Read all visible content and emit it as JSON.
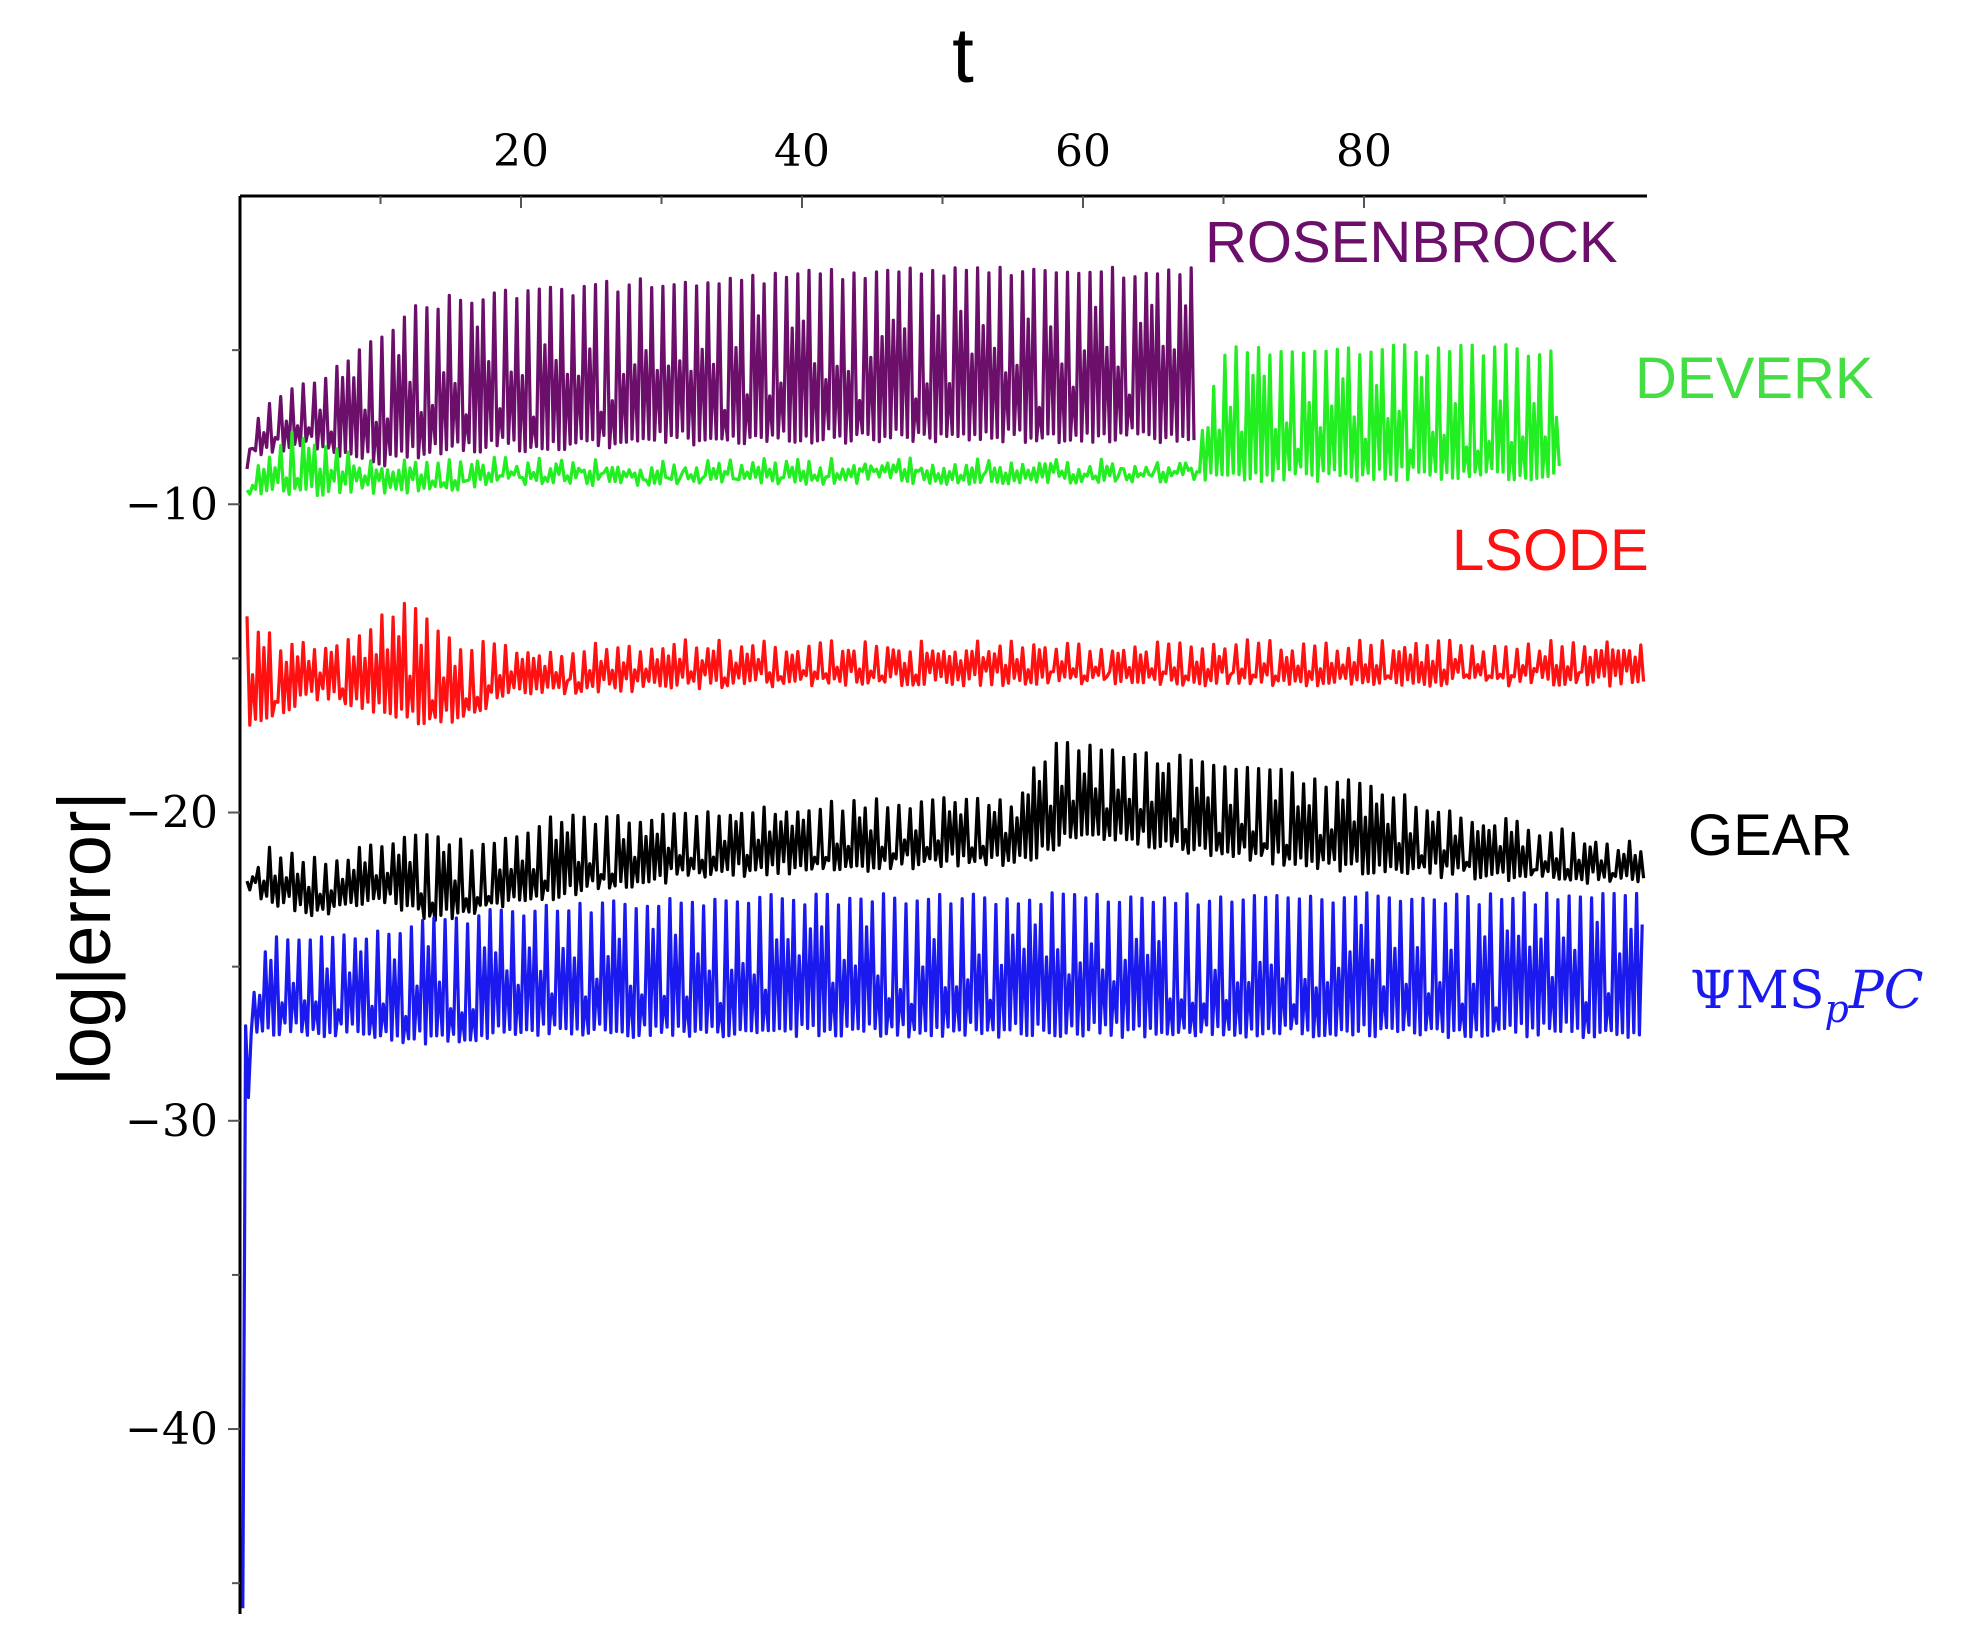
{
  "chart_data": {
    "type": "line",
    "title": "",
    "xlabel": "t",
    "ylabel": "log|error|",
    "xlim": [
      0,
      100
    ],
    "ylim": [
      -46,
      0
    ],
    "x_axis_position": "top",
    "y_axis_position": "left",
    "x_ticks": [
      20,
      40,
      60,
      80
    ],
    "x_tick_labels": [
      "20",
      "40",
      "60",
      "80"
    ],
    "y_ticks": [
      -10,
      -20,
      -30,
      -40
    ],
    "y_tick_labels": [
      "−10",
      "−20",
      "−30",
      "−40"
    ],
    "grid": false,
    "series": [
      {
        "name": "ROSENBROCK",
        "color": "#6b0f6b",
        "x_end": 68,
        "points": [
          [
            0.5,
            -8.5
          ],
          [
            1,
            -7
          ],
          [
            2,
            -6.5
          ],
          [
            5,
            -6
          ],
          [
            8,
            -5
          ],
          [
            11,
            -4
          ],
          [
            12,
            -3.5
          ],
          [
            15,
            -3.2
          ],
          [
            20,
            -3
          ],
          [
            30,
            -2.6
          ],
          [
            40,
            -2.4
          ],
          [
            50,
            -2.3
          ],
          [
            60,
            -2.3
          ],
          [
            68,
            -2.3
          ]
        ],
        "lower": [
          [
            0.5,
            -8.5
          ],
          [
            5,
            -8.2
          ],
          [
            10,
            -8.8
          ],
          [
            15,
            -8.4
          ],
          [
            30,
            -8.1
          ],
          [
            50,
            -8.0
          ],
          [
            68,
            -8.0
          ]
        ]
      },
      {
        "name": "DEVERK",
        "color": "#22ee22",
        "x_end": 94,
        "points": [
          [
            0.5,
            -9.5
          ],
          [
            1,
            -8.5
          ],
          [
            4,
            -7.5
          ],
          [
            6,
            -8
          ],
          [
            10,
            -8.7
          ],
          [
            15,
            -8.3
          ],
          [
            20,
            -8.5
          ],
          [
            30,
            -8.5
          ],
          [
            50,
            -8.5
          ],
          [
            68,
            -8.5
          ],
          [
            70,
            -4.8
          ],
          [
            94,
            -4.8
          ]
        ],
        "lower": [
          [
            0.5,
            -9.8
          ],
          [
            10,
            -9.7
          ],
          [
            20,
            -9.4
          ],
          [
            40,
            -9.4
          ],
          [
            68,
            -9.3
          ],
          [
            94,
            -9.2
          ]
        ]
      },
      {
        "name": "LSODE",
        "color": "#ff1111",
        "x_end": 100,
        "points": [
          [
            0.5,
            -13.5
          ],
          [
            3,
            -14.5
          ],
          [
            8,
            -14.2
          ],
          [
            12,
            -13
          ],
          [
            15,
            -14.3
          ],
          [
            20,
            -14.6
          ],
          [
            30,
            -14.4
          ],
          [
            50,
            -14.4
          ],
          [
            100,
            -14.4
          ]
        ],
        "lower": [
          [
            0.5,
            -17.5
          ],
          [
            5,
            -16.3
          ],
          [
            10,
            -16.8
          ],
          [
            14,
            -17.3
          ],
          [
            20,
            -16.2
          ],
          [
            40,
            -15.9
          ],
          [
            100,
            -15.9
          ]
        ]
      },
      {
        "name": "GEAR",
        "color": "#000000",
        "x_end": 100,
        "points": [
          [
            0.5,
            -22
          ],
          [
            2,
            -21
          ],
          [
            6,
            -21.5
          ],
          [
            12,
            -20.5
          ],
          [
            18,
            -21
          ],
          [
            22,
            -20
          ],
          [
            30,
            -20
          ],
          [
            45,
            -19.5
          ],
          [
            55,
            -19.5
          ],
          [
            58,
            -17.6
          ],
          [
            70,
            -18.3
          ],
          [
            80,
            -19
          ],
          [
            88,
            -20
          ],
          [
            94,
            -20.5
          ],
          [
            100,
            -21
          ]
        ],
        "lower": [
          [
            0.5,
            -22.6
          ],
          [
            5,
            -23.5
          ],
          [
            10,
            -23
          ],
          [
            14,
            -23.6
          ],
          [
            20,
            -23
          ],
          [
            30,
            -22.3
          ],
          [
            40,
            -22
          ],
          [
            56,
            -21.7
          ],
          [
            60,
            -20.8
          ],
          [
            70,
            -21.5
          ],
          [
            80,
            -22
          ],
          [
            100,
            -22.4
          ]
        ]
      },
      {
        "name": "ΨMS_pPC",
        "color": "#1a1aee",
        "x_end": 100,
        "points": [
          [
            0.2,
            -45.5
          ],
          [
            0.7,
            -26
          ],
          [
            2,
            -24
          ],
          [
            6,
            -24
          ],
          [
            12,
            -23.5
          ],
          [
            20,
            -23
          ],
          [
            30,
            -22.8
          ],
          [
            40,
            -22.6
          ],
          [
            100,
            -22.6
          ]
        ],
        "lower": [
          [
            0.7,
            -27.2
          ],
          [
            10,
            -27.4
          ],
          [
            12,
            -27.6
          ],
          [
            20,
            -27.3
          ],
          [
            100,
            -27.3
          ]
        ]
      }
    ],
    "annotations": [
      {
        "text": "ROSENBROCK",
        "series": "ROSENBROCK"
      },
      {
        "text": "DEVERK",
        "series": "DEVERK"
      },
      {
        "text": "LSODE",
        "series": "LSODE"
      },
      {
        "text": "GEAR",
        "series": "GEAR"
      },
      {
        "text_parts": [
          "ΨMS",
          "p",
          "PC"
        ],
        "series": "ΨMS_pPC"
      }
    ]
  }
}
